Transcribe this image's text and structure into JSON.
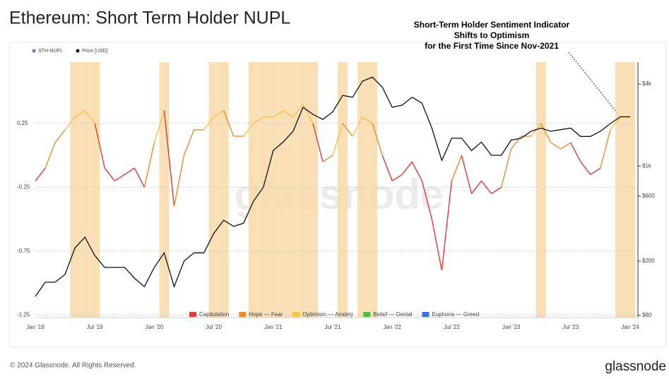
{
  "chart_data": {
    "type": "line",
    "title": "Ethereum: Short Term Holder NUPL",
    "annotation": [
      "Short-Term Holder Sentiment Indicator",
      "Shifts to Optimism",
      "for the First Time Since Nov-2021"
    ],
    "watermark": "glassnode",
    "footer": "© 2024 Glassnode. All Rights Reserved.",
    "brand": "glassnode",
    "categories": [
      "Jan '19",
      null,
      null,
      null,
      null,
      null,
      "Jul '19",
      null,
      null,
      null,
      null,
      null,
      "Jan '20",
      null,
      null,
      null,
      null,
      null,
      "Jul '20",
      null,
      null,
      null,
      null,
      null,
      "Jan '21",
      null,
      null,
      null,
      null,
      null,
      "Jul '21",
      null,
      null,
      null,
      null,
      null,
      "Jan '22",
      null,
      null,
      null,
      null,
      null,
      "Jul '22",
      null,
      null,
      null,
      null,
      null,
      "Jan '23",
      null,
      null,
      null,
      null,
      null,
      "Jul '23",
      null,
      null,
      null,
      null,
      null,
      "Jan '24"
    ],
    "regimes": [
      {
        "name": "Capitulation",
        "color": "#e0393e"
      },
      {
        "name": "Hope — Fear",
        "color": "#ee8a2e"
      },
      {
        "name": "Optimism — Anxiety",
        "color": "#f6c343",
        "highlight": true
      },
      {
        "name": "Belief — Denial",
        "color": "#4fbf3a"
      },
      {
        "name": "Euphoria — Greed",
        "color": "#3f6fd8"
      }
    ],
    "series": [
      {
        "name": "STH-NUPL",
        "color": "#5b7fbf",
        "values": [
          -0.2,
          -0.1,
          0.1,
          0.2,
          0.3,
          0.35,
          0.25,
          -0.1,
          -0.2,
          -0.15,
          -0.1,
          -0.25,
          0.1,
          0.35,
          -0.4,
          0.0,
          0.2,
          0.2,
          0.3,
          0.35,
          0.15,
          0.15,
          0.25,
          0.3,
          0.3,
          0.35,
          0.3,
          0.4,
          0.25,
          -0.05,
          0.0,
          0.25,
          0.15,
          0.3,
          0.25,
          0.0,
          -0.2,
          -0.15,
          -0.05,
          -0.2,
          -0.5,
          -0.9,
          -0.2,
          0.0,
          -0.3,
          -0.2,
          -0.3,
          -0.25,
          0.05,
          0.15,
          0.15,
          0.25,
          0.1,
          0.05,
          0.1,
          -0.05,
          -0.15,
          -0.1,
          0.2,
          0.3,
          0.3
        ],
        "regime": [
          0,
          0,
          1,
          1,
          2,
          2,
          2,
          0,
          0,
          0,
          0,
          0,
          1,
          2,
          0,
          1,
          1,
          1,
          2,
          2,
          1,
          1,
          2,
          2,
          2,
          2,
          2,
          2,
          2,
          0,
          1,
          2,
          1,
          2,
          2,
          1,
          0,
          0,
          0,
          0,
          0,
          0,
          0,
          1,
          0,
          0,
          0,
          0,
          1,
          1,
          1,
          2,
          1,
          1,
          1,
          0,
          0,
          0,
          1,
          2,
          2
        ]
      },
      {
        "name": "Price [USD]",
        "color": "#111111",
        "axis": "y2",
        "values": [
          110,
          140,
          140,
          160,
          250,
          300,
          220,
          180,
          180,
          180,
          150,
          130,
          180,
          230,
          130,
          200,
          230,
          230,
          320,
          400,
          360,
          380,
          550,
          700,
          1300,
          1500,
          1800,
          2700,
          2400,
          2200,
          2500,
          3300,
          3200,
          4200,
          4500,
          3800,
          2700,
          2800,
          3200,
          2900,
          1900,
          1100,
          1600,
          1600,
          1300,
          1500,
          1200,
          1200,
          1550,
          1600,
          1800,
          1900,
          1800,
          1850,
          1900,
          1650,
          1650,
          1800,
          2050,
          2300,
          2300
        ]
      }
    ],
    "ylim": [
      -1.27,
      0.73
    ],
    "yticks": [
      0.25,
      -0.25,
      -0.75,
      -1.25
    ],
    "y2lim": [
      77,
      5800
    ],
    "y2scale": "log",
    "y2ticks": [
      {
        "value": 80,
        "label": "$80"
      },
      {
        "value": 200,
        "label": "$200"
      },
      {
        "value": 600,
        "label": "$600"
      },
      {
        "value": 1000,
        "label": "$1k"
      },
      {
        "value": 4000,
        "label": "$4k"
      }
    ],
    "grid": true
  }
}
